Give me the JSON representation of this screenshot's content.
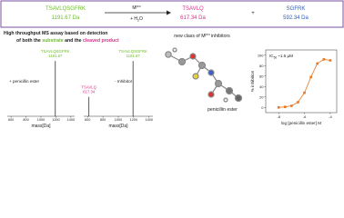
{
  "reaction": {
    "substrate": {
      "name": "TSAVLQSGFRK",
      "mass": "1191.67 Da"
    },
    "enzyme": [
      "M",
      "pro"
    ],
    "water": [
      "+ H",
      "2",
      "O"
    ],
    "product_1": {
      "name": "TSAVLQ",
      "mass": "617.34 Da"
    },
    "plus": "+",
    "product_2": {
      "name": "SGFRK",
      "mass": "592.34 Da"
    }
  },
  "assay_title": {
    "line_1": "High throughput MS assay based on detection",
    "line_2": [
      "of both the",
      "substrate",
      "and the",
      "cleaved product"
    ]
  },
  "inhibitors_title": [
    "new class of M",
    "pro",
    "inhibitors"
  ],
  "molecule_label": "penicillin  ester",
  "chart_data": [
    {
      "type": "spectrum",
      "annotation": "+ penicillin ester",
      "x": [
        1191.67
      ],
      "values": [
        100
      ],
      "peak_labels": [
        "TSAVLQSGFRK"
      ],
      "peak_colors": [
        "#6cbd2a"
      ],
      "xlim": [
        550,
        1450
      ],
      "xticks": [
        600,
        800,
        1000,
        1200,
        1400
      ],
      "ylim": [
        0,
        115
      ],
      "xlabel": "mass[Da]",
      "color": "#333333"
    },
    {
      "type": "spectrum",
      "annotation": "- Inhibitor",
      "x": [
        617.34,
        1191.67
      ],
      "values": [
        35,
        100
      ],
      "peak_labels": [
        "TSAVLQ",
        "TSAVLQSGFRK"
      ],
      "peak_colors": [
        "#d6338a",
        "#6cbd2a"
      ],
      "xlim": [
        550,
        1450
      ],
      "xticks": [
        600,
        800,
        1000,
        1200,
        1400
      ],
      "ylim": [
        0,
        115
      ],
      "xlabel": "mass[Da]",
      "color": "#333333"
    },
    {
      "type": "scatter",
      "annotation": [
        "IC",
        "50",
        "~1.6 µM"
      ],
      "x": [
        -8,
        -7.5,
        -7,
        -6.5,
        -6,
        -5.5,
        -5,
        -4.5,
        -4
      ],
      "values": [
        0,
        1,
        3,
        10,
        28,
        58,
        84,
        92,
        90
      ],
      "xlim": [
        -9,
        -3.5
      ],
      "xticks": [
        -8,
        -6,
        -4
      ],
      "ylim": [
        -10,
        110
      ],
      "yticks": [
        0,
        20,
        40,
        60,
        80,
        100
      ],
      "xlabel": "log [penicillin ester] M",
      "ylabel": "% inhibition",
      "color": "#e87722"
    }
  ]
}
